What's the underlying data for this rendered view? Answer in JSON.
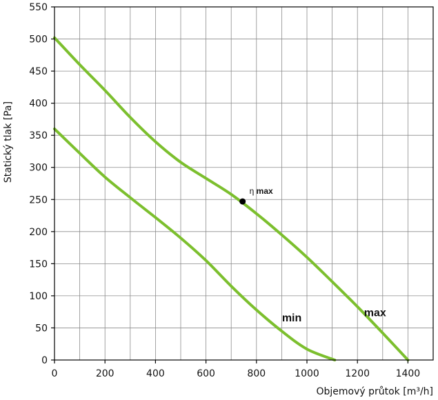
{
  "chart_data": {
    "type": "line",
    "title": "",
    "xlabel": "Objemový průtok [m³/h]",
    "ylabel": "Statický tlak [Pa]",
    "xlim": [
      0,
      1500
    ],
    "ylim": [
      0,
      550
    ],
    "x_ticks": [
      0,
      200,
      400,
      600,
      800,
      1000,
      1200,
      1400
    ],
    "y_ticks": [
      0,
      50,
      100,
      150,
      200,
      250,
      300,
      350,
      400,
      450,
      500,
      550
    ],
    "x_grid_step": 100,
    "y_grid_step": 50,
    "grid": true,
    "line_color": "#7cbf2e",
    "series": [
      {
        "name": "max",
        "x": [
          0,
          100,
          200,
          300,
          400,
          500,
          600,
          700,
          800,
          900,
          1000,
          1100,
          1200,
          1300,
          1400
        ],
        "y": [
          502,
          460,
          420,
          378,
          340,
          308,
          283,
          258,
          228,
          195,
          160,
          122,
          83,
          42,
          0
        ]
      },
      {
        "name": "min",
        "x": [
          0,
          100,
          200,
          300,
          400,
          500,
          600,
          700,
          800,
          900,
          1000,
          1110
        ],
        "y": [
          360,
          322,
          285,
          253,
          222,
          190,
          155,
          115,
          78,
          45,
          17,
          0
        ]
      }
    ],
    "annotations": [
      {
        "text": "η",
        "subtext": "max",
        "x": 745,
        "y": 247
      }
    ],
    "series_label_positions": {
      "max": {
        "x": 1270,
        "y": 68
      },
      "min": {
        "x": 940,
        "y": 60
      }
    }
  }
}
